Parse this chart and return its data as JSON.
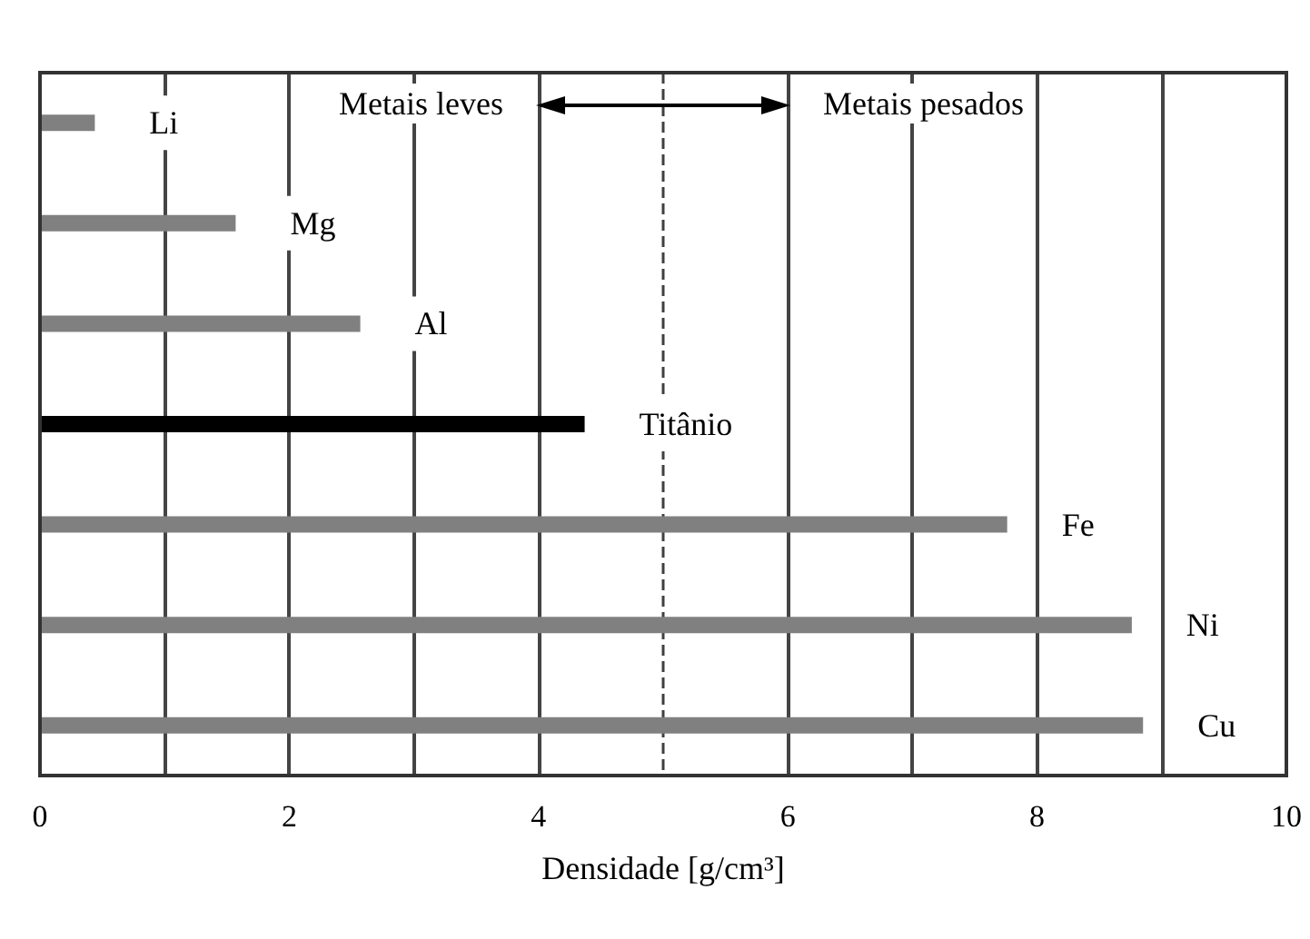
{
  "chart_data": {
    "type": "bar",
    "orientation": "horizontal",
    "xlabel": "Densidade [g/cm³]",
    "categories": [
      "Li",
      "Mg",
      "Al",
      "Titânio",
      "Fe",
      "Ni",
      "Cu"
    ],
    "values": [
      0.44,
      1.57,
      2.57,
      4.37,
      7.76,
      8.76,
      8.85
    ],
    "colors": [
      "#808080",
      "#808080",
      "#808080",
      "#000000",
      "#808080",
      "#808080",
      "#808080"
    ],
    "xlim": [
      0,
      10
    ],
    "xticks": [
      0,
      {
        "value": 1,
        "label": null
      },
      2,
      {
        "value": 3,
        "label": null
      },
      4,
      {
        "value": 5,
        "label": null
      },
      6,
      {
        "value": 7,
        "label": null
      },
      8,
      {
        "value": 9,
        "label": null
      },
      10
    ],
    "grid": "x",
    "tick_labels": "x",
    "ref_lines": [
      {
        "axis": "x",
        "value": 5,
        "line_style": "dashed",
        "color": "#404040"
      }
    ],
    "annotations": [
      "Metais leves",
      "Metais pesados"
    ]
  }
}
